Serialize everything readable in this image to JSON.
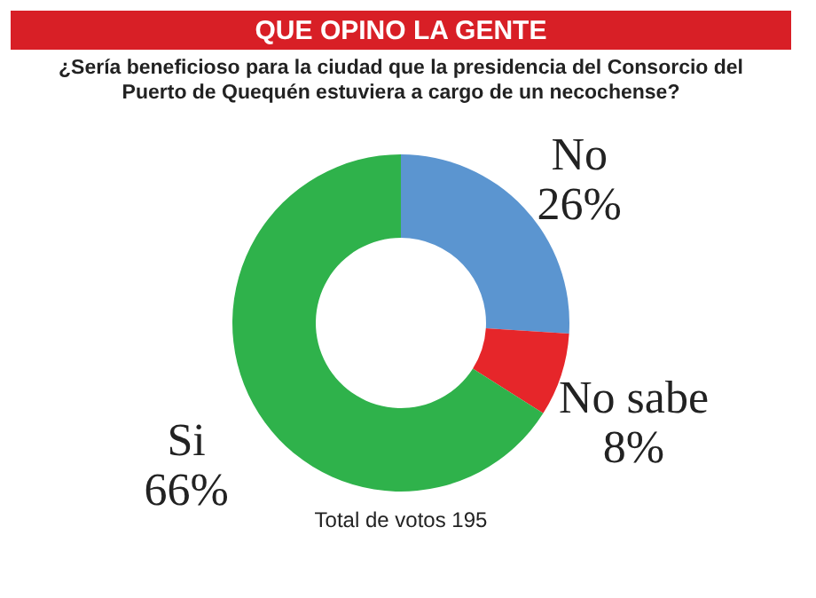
{
  "chart_data": {
    "type": "donut",
    "title": "QUE OPINO LA GENTE",
    "subtitle": "¿Sería beneficioso para la ciudad que la presidencia del Consorcio del Puerto de Quequén estuviera a cargo de un necochense?",
    "categories": [
      "No",
      "No sabe",
      "Si"
    ],
    "values": [
      26,
      8,
      66
    ],
    "value_labels": [
      "26%",
      "8%",
      "66%"
    ],
    "colors": [
      "#5b95d0",
      "#e6262a",
      "#2fb24b"
    ],
    "legend": false,
    "annotations": [
      "Total de votos 195"
    ]
  }
}
